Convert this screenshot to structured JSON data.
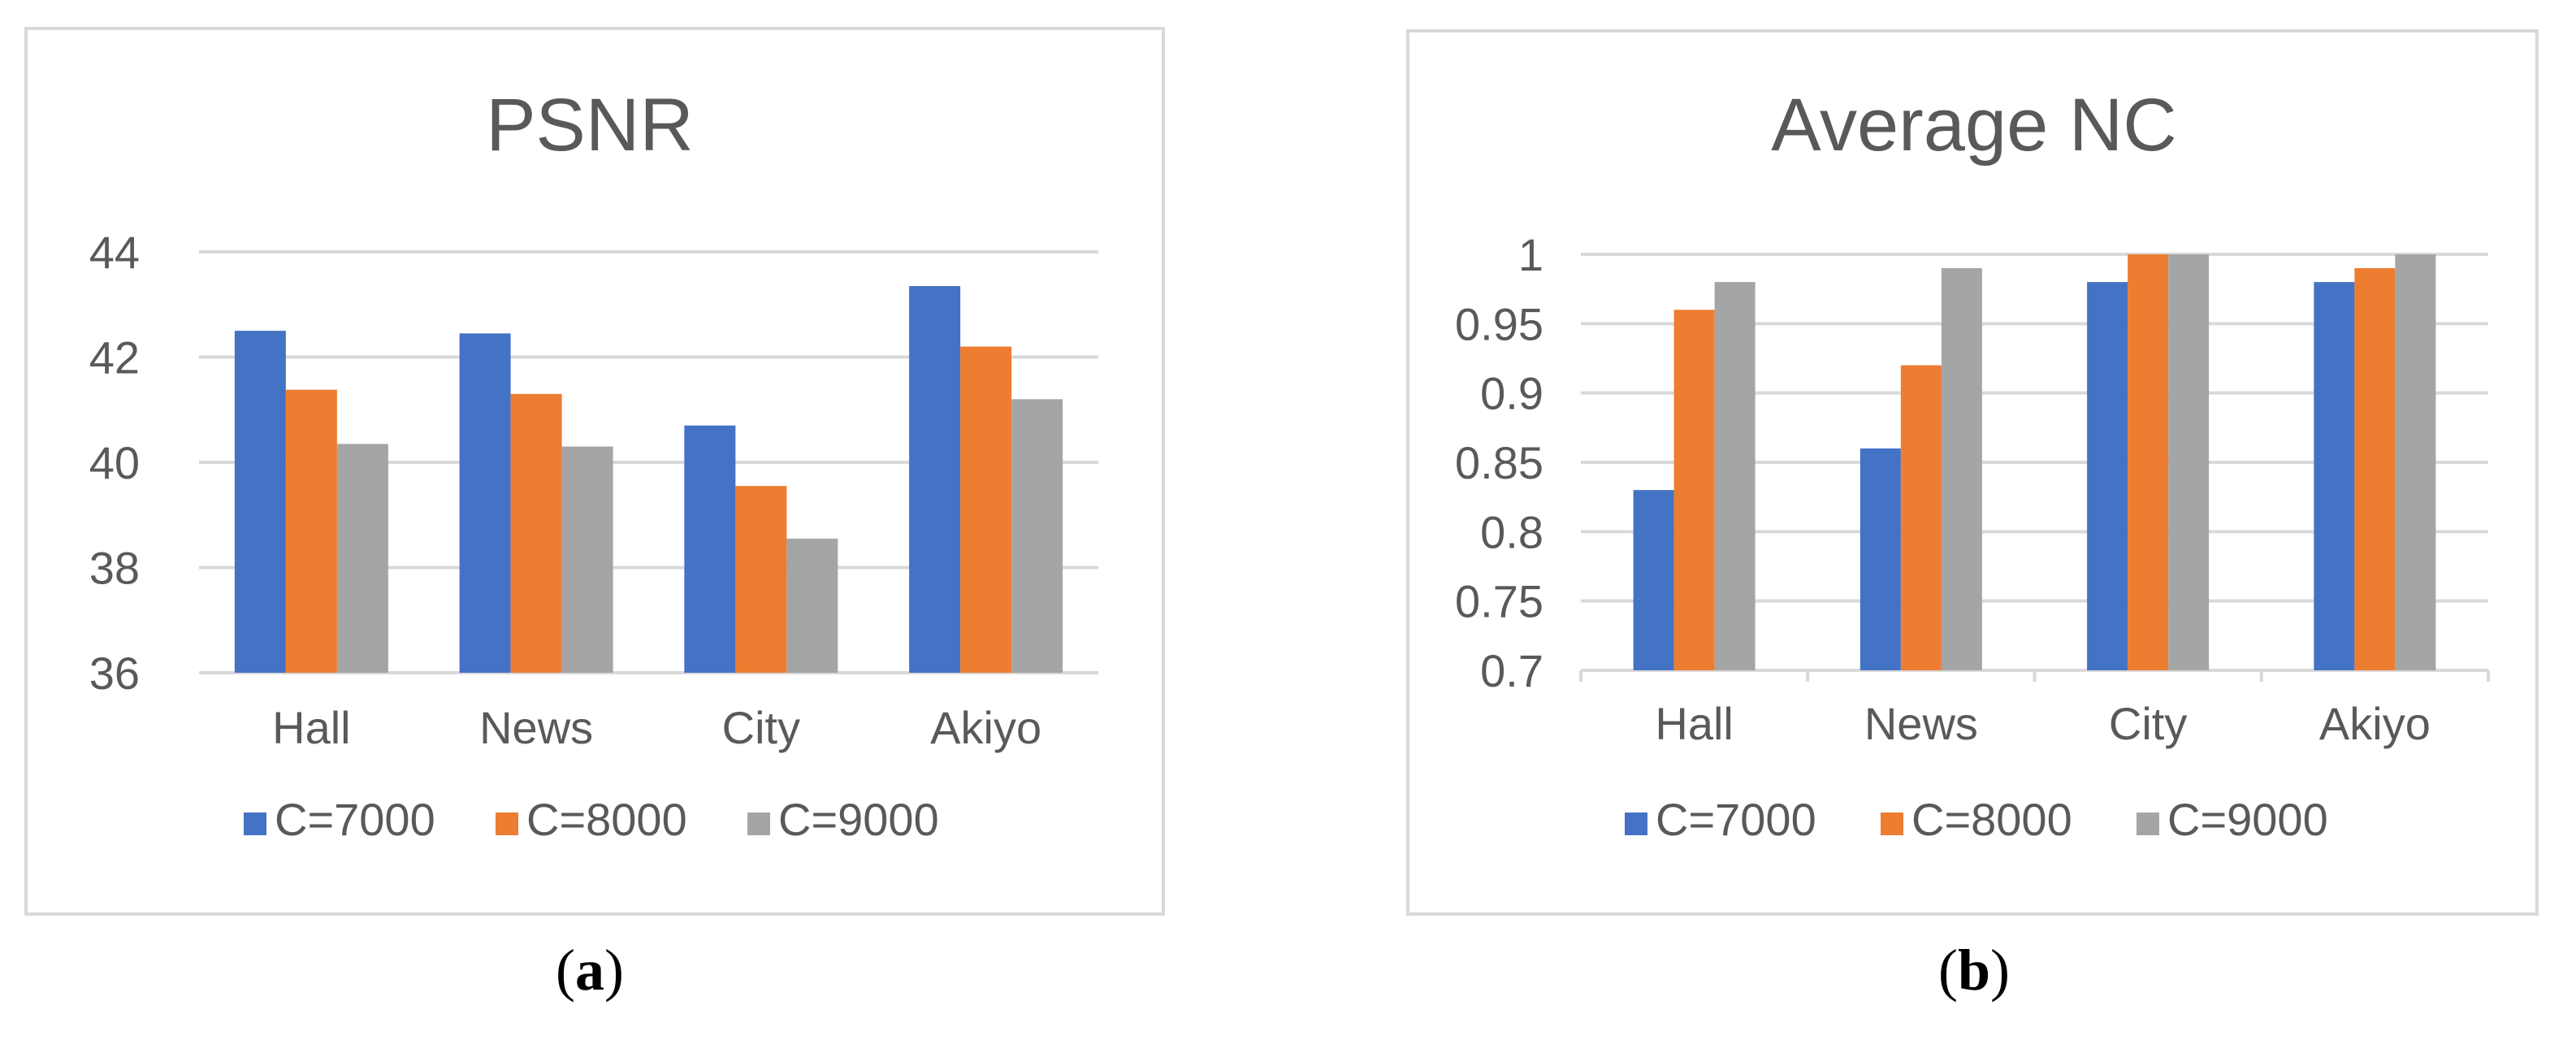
{
  "colors": {
    "series": [
      "#4472C4",
      "#ED7D31",
      "#A5A5A5"
    ],
    "grid": "#D9D9D9",
    "text": "#595959",
    "frame": "#D9D9D9"
  },
  "chart_data": [
    {
      "type": "bar",
      "sublabel": "a",
      "title": "PSNR",
      "categories": [
        "Hall",
        "News",
        "City",
        "Akiyo"
      ],
      "series": [
        {
          "name": "C=7000",
          "values": [
            42.5,
            42.45,
            40.7,
            43.35
          ]
        },
        {
          "name": "C=8000",
          "values": [
            41.38,
            41.3,
            39.55,
            42.2
          ]
        },
        {
          "name": "C=9000",
          "values": [
            40.35,
            40.3,
            38.55,
            41.2
          ]
        }
      ],
      "ylim": [
        36,
        44
      ],
      "yticks": [
        36,
        38,
        40,
        42,
        44
      ],
      "ytick_labels": [
        "36",
        "38",
        "40",
        "42",
        "44"
      ],
      "grid": true,
      "legend_position": "bottom"
    },
    {
      "type": "bar",
      "sublabel": "b",
      "title": "Average NC",
      "categories": [
        "Hall",
        "News",
        "City",
        "Akiyo"
      ],
      "series": [
        {
          "name": "C=7000",
          "values": [
            0.83,
            0.86,
            0.98,
            0.98
          ]
        },
        {
          "name": "C=8000",
          "values": [
            0.96,
            0.92,
            1.0,
            0.99
          ]
        },
        {
          "name": "C=9000",
          "values": [
            0.98,
            0.99,
            1.0,
            1.0
          ]
        }
      ],
      "ylim": [
        0.7,
        1.0
      ],
      "yticks": [
        0.7,
        0.75,
        0.8,
        0.85,
        0.9,
        0.95,
        1.0
      ],
      "ytick_labels": [
        "0.7",
        "0.75",
        "0.8",
        "0.85",
        "0.9",
        "0.95",
        "1"
      ],
      "grid": true,
      "legend_position": "bottom"
    }
  ]
}
